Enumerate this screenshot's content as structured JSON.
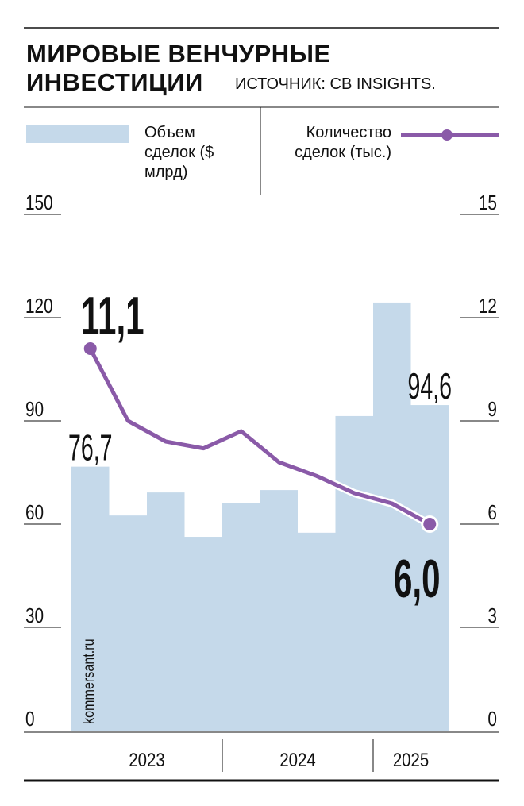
{
  "chart_data": {
    "type": "bar",
    "title": "МИРОВЫЕ ВЕНЧУРНЫЕ ИНВЕСТИЦИИ",
    "source": "ИСТОЧНИК: CB INSIGHTS.",
    "watermark": "kommersant.ru",
    "categories": [
      null,
      null,
      null,
      null,
      null,
      null,
      null,
      null,
      null,
      null
    ],
    "x_groups": [
      {
        "label": "2023",
        "span": 4
      },
      {
        "label": "2024",
        "span": 4
      },
      {
        "label": "2025",
        "span": 2
      }
    ],
    "series": [
      {
        "name": "Объем сделок ($ млрд)",
        "type": "bar",
        "color": "#c5d9ea",
        "values": [
          76.7,
          62.5,
          69.2,
          56.3,
          66.0,
          69.9,
          57.5,
          91.4,
          124.4,
          94.6
        ],
        "value_labels": [
          "76,7",
          null,
          null,
          null,
          null,
          null,
          null,
          null,
          null,
          "94,6"
        ]
      },
      {
        "name": "Количество сделок (тыс.)",
        "type": "line",
        "axis": "y2",
        "color": "#8a5aa8",
        "values": [
          11.1,
          9.0,
          8.4,
          8.2,
          8.7,
          7.8,
          7.4,
          6.9,
          6.6,
          6.0
        ],
        "value_labels": [
          "11,1",
          null,
          null,
          null,
          null,
          null,
          null,
          null,
          null,
          "6,0"
        ]
      }
    ],
    "ylim": [
      0,
      150
    ],
    "yticks": [
      0,
      30,
      60,
      90,
      120,
      150
    ],
    "y2lim": [
      0,
      15
    ],
    "y2ticks": [
      0,
      3,
      6,
      9,
      12,
      15
    ]
  }
}
